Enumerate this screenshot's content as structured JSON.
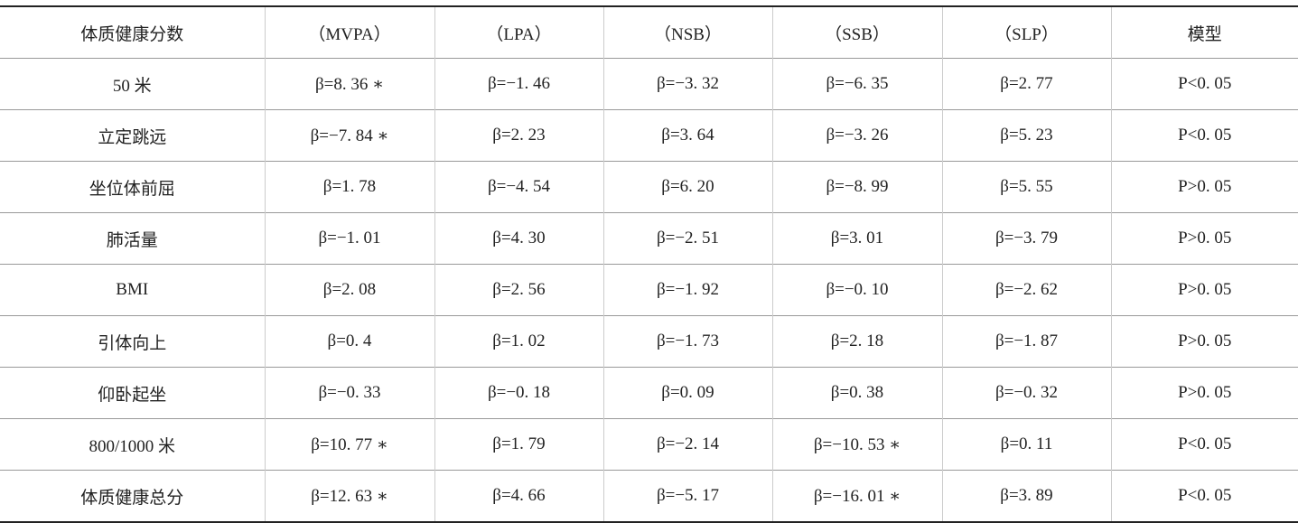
{
  "table": {
    "header": [
      "体质健康分数",
      "（MVPA）",
      "（LPA）",
      "（NSB）",
      "（SSB）",
      "（SLP）",
      "模型"
    ],
    "rows": [
      [
        "50 米",
        "β=8. 36 ∗",
        "β=−1. 46",
        "β=−3. 32",
        "β=−6. 35",
        "β=2. 77",
        "P<0. 05"
      ],
      [
        "立定跳远",
        "β=−7. 84 ∗",
        "β=2. 23",
        "β=3. 64",
        "β=−3. 26",
        "β=5. 23",
        "P<0. 05"
      ],
      [
        "坐位体前屈",
        "β=1. 78",
        "β=−4. 54",
        "β=6. 20",
        "β=−8. 99",
        "β=5. 55",
        "P>0. 05"
      ],
      [
        "肺活量",
        "β=−1. 01",
        "β=4. 30",
        "β=−2. 51",
        "β=3. 01",
        "β=−3. 79",
        "P>0. 05"
      ],
      [
        "BMI",
        "β=2. 08",
        "β=2. 56",
        "β=−1. 92",
        "β=−0. 10",
        "β=−2. 62",
        "P>0. 05"
      ],
      [
        "引体向上",
        "β=0. 4",
        "β=1. 02",
        "β=−1. 73",
        "β=2. 18",
        "β=−1. 87",
        "P>0. 05"
      ],
      [
        "仰卧起坐",
        "β=−0. 33",
        "β=−0. 18",
        "β=0. 09",
        "β=0. 38",
        "β=−0. 32",
        "P>0. 05"
      ],
      [
        "800/1000 米",
        "β=10. 77 ∗",
        "β=1. 79",
        "β=−2. 14",
        "β=−10. 53 ∗",
        "β=0. 11",
        "P<0. 05"
      ],
      [
        "体质健康总分",
        "β=12. 63 ∗",
        "β=4. 66",
        "β=−5. 17",
        "β=−16. 01 ∗",
        "β=3. 89",
        "P<0. 05"
      ]
    ]
  }
}
